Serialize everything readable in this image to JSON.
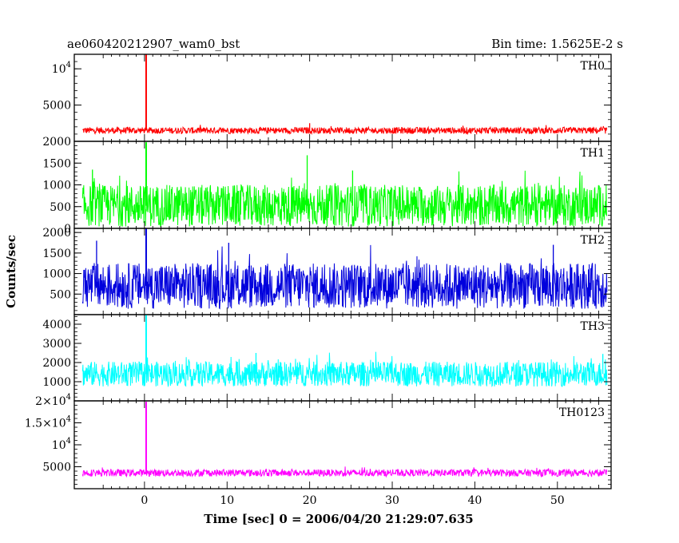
{
  "header": {
    "title": "ae060420212907_wam0_bst",
    "bin_time": "Bin time: 1.5625E-2 s"
  },
  "chart_data": {
    "type": "line",
    "xlabel": "Time [sec] 0 = 2006/04/20 21:29:07.635",
    "ylabel": "Counts/sec",
    "xlim": [
      -8.5,
      56.5
    ],
    "x_ticks": [
      0,
      10,
      20,
      30,
      40,
      50
    ],
    "data_x_range": [
      -7.5,
      56
    ],
    "grid": false,
    "panels": [
      {
        "name": "TH0",
        "color": "#ff0000",
        "ylim": [
          0,
          12000
        ],
        "y_ticks": [
          {
            "v": 5000,
            "t": "5000"
          },
          {
            "v": 10000,
            "t": "10",
            "sup": "4"
          }
        ],
        "baseline": 1500,
        "noise": 450,
        "spike_x": 0.2,
        "spike_y": 12000,
        "peaks": [
          {
            "x": 20,
            "y": 2500
          }
        ]
      },
      {
        "name": "TH1",
        "color": "#00ff00",
        "ylim": [
          0,
          2000
        ],
        "y_ticks": [
          {
            "v": 0,
            "t": "0"
          },
          {
            "v": 500,
            "t": "500"
          },
          {
            "v": 1000,
            "t": "1000"
          },
          {
            "v": 1500,
            "t": "1500"
          },
          {
            "v": 2000,
            "t": "2000"
          }
        ],
        "baseline": 520,
        "noise": 480,
        "spike_x": 0.2,
        "spike_y": 1980,
        "peaks": [
          {
            "x": 19.7,
            "y": 1680
          },
          {
            "x": -6.3,
            "y": 1350
          },
          {
            "x": 25.2,
            "y": 1330
          }
        ]
      },
      {
        "name": "TH2",
        "color": "#0000dd",
        "ylim": [
          0,
          2100
        ],
        "y_ticks": [
          {
            "v": 500,
            "t": "500"
          },
          {
            "v": 1000,
            "t": "1000"
          },
          {
            "v": 1500,
            "t": "1500"
          },
          {
            "v": 2000,
            "t": "2000"
          }
        ],
        "baseline": 700,
        "noise": 560,
        "spike_x": 0.2,
        "spike_y": 2100,
        "peaks": [
          {
            "x": -5.8,
            "y": 1800
          },
          {
            "x": 10.2,
            "y": 1750
          },
          {
            "x": 49.5,
            "y": 1700
          }
        ]
      },
      {
        "name": "TH3",
        "color": "#00ffff",
        "ylim": [
          0,
          4500
        ],
        "y_ticks": [
          {
            "v": 1000,
            "t": "1000"
          },
          {
            "v": 2000,
            "t": "2000"
          },
          {
            "v": 3000,
            "t": "3000"
          },
          {
            "v": 4000,
            "t": "4000"
          }
        ],
        "baseline": 1400,
        "noise": 650,
        "spike_x": 0.2,
        "spike_y": 4500,
        "peaks": [
          {
            "x": 13.5,
            "y": 2500
          },
          {
            "x": 55.5,
            "y": 2450
          }
        ]
      },
      {
        "name": "TH0123",
        "color": "#ff00ff",
        "ylim": [
          0,
          20000
        ],
        "y_ticks": [
          {
            "v": 5000,
            "t": "5000"
          },
          {
            "v": 10000,
            "t": "10",
            "sup": "4"
          },
          {
            "v": 15000,
            "t": "1.5×10",
            "sup": "4"
          },
          {
            "v": 20000,
            "t": "2×10",
            "sup": "4"
          }
        ],
        "baseline": 3600,
        "noise": 800,
        "spike_x": 0.2,
        "spike_y": 19800,
        "peaks": []
      }
    ]
  }
}
